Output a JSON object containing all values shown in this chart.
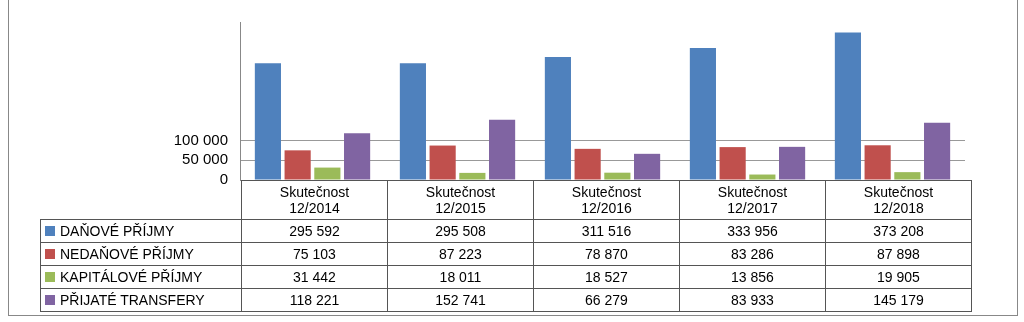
{
  "chart_data": {
    "type": "bar",
    "categories": [
      "Skutečnost 12/2014",
      "Skutečnost 12/2015",
      "Skutečnost 12/2016",
      "Skutečnost 12/2017",
      "Skutečnost 12/2018"
    ],
    "series": [
      {
        "name": "DAŇOVÉ PŘÍJMY",
        "color": "#4f81bd",
        "values": [
          295592,
          295508,
          311516,
          333956,
          373208
        ]
      },
      {
        "name": "NEDAŇOVÉ PŘÍJMY",
        "color": "#c0504d",
        "values": [
          75103,
          87223,
          78870,
          83286,
          87898
        ]
      },
      {
        "name": "KAPITÁLOVÉ PŘÍJMY",
        "color": "#9bbb59",
        "values": [
          31442,
          18011,
          18527,
          13856,
          19905
        ]
      },
      {
        "name": "PŘIJATÉ TRANSFERY",
        "color": "#8064a2",
        "values": [
          118221,
          152741,
          66279,
          83933,
          145179
        ]
      }
    ],
    "ylim": [
      0,
      400000
    ],
    "yticks": [
      {
        "value": 0,
        "label": "0"
      },
      {
        "value": 50000,
        "label": "50 000"
      },
      {
        "value": 100000,
        "label": "100 000"
      }
    ],
    "grid": "y",
    "legend": "bottom left",
    "data_labels": true
  }
}
